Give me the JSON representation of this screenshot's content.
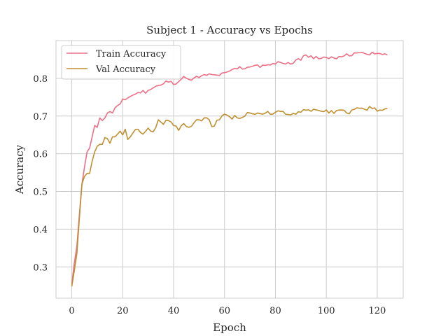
{
  "chart_data": {
    "type": "line",
    "title": "Subject 1 - Accuracy vs Epochs",
    "xlabel": "Epoch",
    "ylabel": "Accuracy",
    "xlim": [
      -6.2,
      130.2
    ],
    "ylim": [
      0.217,
      0.9
    ],
    "xticks": [
      0,
      20,
      40,
      60,
      80,
      100,
      120
    ],
    "yticks": [
      0.3,
      0.4,
      0.5,
      0.6,
      0.7,
      0.8
    ],
    "ytick_labels": [
      "0.3",
      "0.4",
      "0.5",
      "0.6",
      "0.7",
      "0.8"
    ],
    "grid": true,
    "legend_position": "upper-left",
    "series": [
      {
        "name": "Train Accuracy",
        "color": "#ec6f86",
        "keypoints": [
          [
            0,
            0.255
          ],
          [
            1,
            0.31
          ],
          [
            2,
            0.355
          ],
          [
            3,
            0.44
          ],
          [
            4,
            0.52
          ],
          [
            5,
            0.565
          ],
          [
            6,
            0.605
          ],
          [
            7,
            0.615
          ],
          [
            8,
            0.645
          ],
          [
            9,
            0.675
          ],
          [
            10,
            0.67
          ],
          [
            11,
            0.695
          ],
          [
            12,
            0.688
          ],
          [
            13,
            0.695
          ],
          [
            14,
            0.708
          ],
          [
            15,
            0.712
          ],
          [
            16,
            0.708
          ],
          [
            17,
            0.722
          ],
          [
            18,
            0.728
          ],
          [
            19,
            0.732
          ],
          [
            20,
            0.745
          ],
          [
            22,
            0.748
          ],
          [
            25,
            0.758
          ],
          [
            30,
            0.768
          ],
          [
            35,
            0.782
          ],
          [
            38,
            0.79
          ],
          [
            41,
            0.785
          ],
          [
            44,
            0.805
          ],
          [
            47,
            0.795
          ],
          [
            50,
            0.802
          ],
          [
            55,
            0.81
          ],
          [
            60,
            0.815
          ],
          [
            65,
            0.825
          ],
          [
            70,
            0.83
          ],
          [
            75,
            0.835
          ],
          [
            80,
            0.838
          ],
          [
            85,
            0.842
          ],
          [
            90,
            0.848
          ],
          [
            92,
            0.862
          ],
          [
            95,
            0.852
          ],
          [
            100,
            0.855
          ],
          [
            105,
            0.858
          ],
          [
            110,
            0.86
          ],
          [
            113,
            0.868
          ],
          [
            117,
            0.862
          ],
          [
            120,
            0.866
          ],
          [
            124,
            0.862
          ]
        ]
      },
      {
        "name": "Val Accuracy",
        "color": "#bf8f30",
        "keypoints": [
          [
            0,
            0.248
          ],
          [
            1,
            0.29
          ],
          [
            2,
            0.335
          ],
          [
            3,
            0.43
          ],
          [
            4,
            0.52
          ],
          [
            5,
            0.54
          ],
          [
            6,
            0.548
          ],
          [
            7,
            0.548
          ],
          [
            8,
            0.58
          ],
          [
            9,
            0.605
          ],
          [
            10,
            0.62
          ],
          [
            11,
            0.625
          ],
          [
            12,
            0.625
          ],
          [
            13,
            0.643
          ],
          [
            14,
            0.64
          ],
          [
            15,
            0.628
          ],
          [
            16,
            0.645
          ],
          [
            17,
            0.645
          ],
          [
            18,
            0.652
          ],
          [
            19,
            0.66
          ],
          [
            20,
            0.65
          ],
          [
            21,
            0.665
          ],
          [
            22,
            0.638
          ],
          [
            24,
            0.655
          ],
          [
            26,
            0.665
          ],
          [
            28,
            0.652
          ],
          [
            30,
            0.668
          ],
          [
            32,
            0.658
          ],
          [
            34,
            0.69
          ],
          [
            36,
            0.678
          ],
          [
            38,
            0.688
          ],
          [
            40,
            0.675
          ],
          [
            42,
            0.662
          ],
          [
            44,
            0.68
          ],
          [
            46,
            0.67
          ],
          [
            48,
            0.682
          ],
          [
            50,
            0.69
          ],
          [
            52,
            0.695
          ],
          [
            54,
            0.69
          ],
          [
            55,
            0.672
          ],
          [
            58,
            0.69
          ],
          [
            60,
            0.705
          ],
          [
            62,
            0.698
          ],
          [
            65,
            0.695
          ],
          [
            68,
            0.7
          ],
          [
            70,
            0.708
          ],
          [
            75,
            0.705
          ],
          [
            80,
            0.71
          ],
          [
            82,
            0.712
          ],
          [
            85,
            0.704
          ],
          [
            90,
            0.71
          ],
          [
            95,
            0.718
          ],
          [
            100,
            0.716
          ],
          [
            101,
            0.708
          ],
          [
            105,
            0.716
          ],
          [
            108,
            0.708
          ],
          [
            110,
            0.716
          ],
          [
            115,
            0.718
          ],
          [
            118,
            0.72
          ],
          [
            121,
            0.716
          ],
          [
            124,
            0.72
          ]
        ]
      }
    ]
  }
}
